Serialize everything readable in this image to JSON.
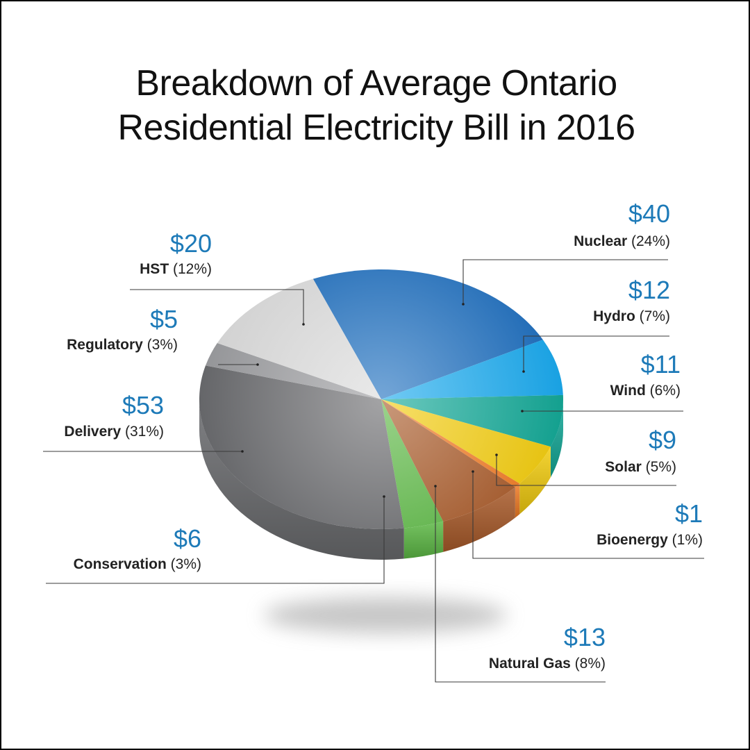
{
  "title_line1": "Breakdown of Average Ontario",
  "title_line2": "Residential Electricity Bill in 2016",
  "chart_data": {
    "type": "pie",
    "title": "Breakdown of Average Ontario Residential Electricity Bill in 2016",
    "slices": [
      {
        "name": "Nuclear",
        "amount": "$40",
        "percent": "(24%)",
        "value": 40,
        "pct": 24,
        "color": "#1f6fbf"
      },
      {
        "name": "Hydro",
        "amount": "$12",
        "percent": "(7%)",
        "value": 12,
        "pct": 7,
        "color": "#1aa9ee"
      },
      {
        "name": "Wind",
        "amount": "$11",
        "percent": "(6%)",
        "value": 11,
        "pct": 6,
        "color": "#14a897"
      },
      {
        "name": "Solar",
        "amount": "$9",
        "percent": "(5%)",
        "value": 9,
        "pct": 5,
        "color": "#f2cc10"
      },
      {
        "name": "Bioenergy",
        "amount": "$1",
        "percent": "(1%)",
        "value": 1,
        "pct": 1,
        "color": "#f07b25"
      },
      {
        "name": "Natural Gas",
        "amount": "$13",
        "percent": "(8%)",
        "value": 13,
        "pct": 8,
        "color": "#a85a2a"
      },
      {
        "name": "Conservation",
        "amount": "$6",
        "percent": "(3%)",
        "value": 6,
        "pct": 3,
        "color": "#5db845"
      },
      {
        "name": "Delivery",
        "amount": "$53",
        "percent": "(31%)",
        "value": 53,
        "pct": 31,
        "color": "#6a6b6e"
      },
      {
        "name": "Regulatory",
        "amount": "$5",
        "percent": "(3%)",
        "value": 5,
        "pct": 3,
        "color": "#9c9da0"
      },
      {
        "name": "HST",
        "amount": "$20",
        "percent": "(12%)",
        "value": 20,
        "pct": 12,
        "color": "#dcdcdc"
      }
    ]
  }
}
